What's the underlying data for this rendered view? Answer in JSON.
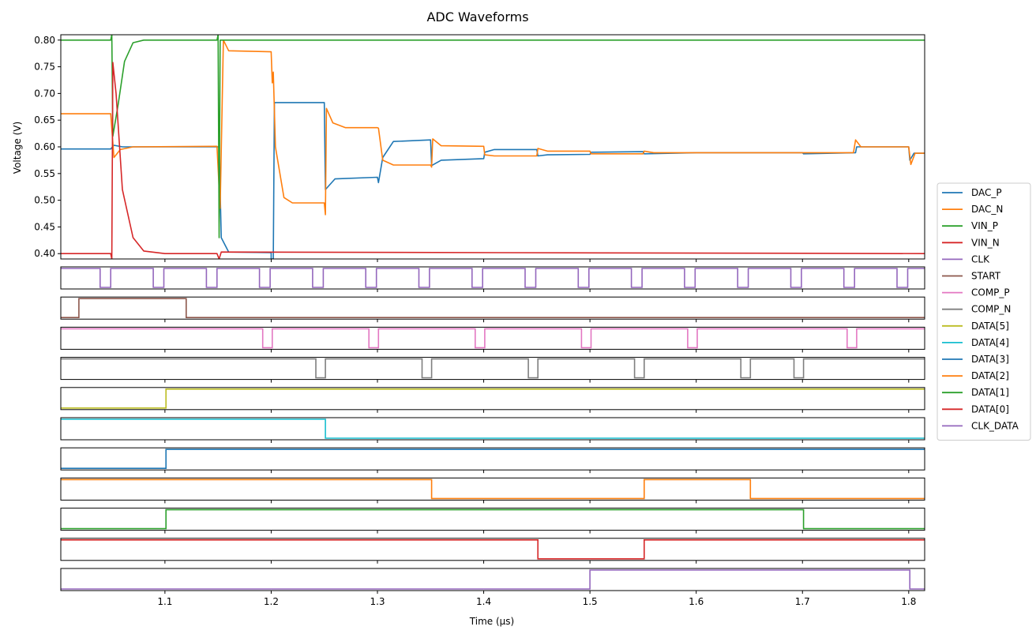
{
  "chart_data": {
    "type": "line",
    "title": "ADC Waveforms",
    "xlabel": "Time (μs)",
    "ylabel": "Voltage (V)",
    "xlim": [
      1.002,
      1.815
    ],
    "ylim": [
      0.39,
      0.81
    ],
    "x_ticks": [
      "1.1",
      "1.2",
      "1.3",
      "1.4",
      "1.5",
      "1.6",
      "1.7",
      "1.8"
    ],
    "y_ticks": [
      "0.40",
      "0.45",
      "0.50",
      "0.55",
      "0.60",
      "0.65",
      "0.70",
      "0.75",
      "0.80"
    ],
    "legend_position": "right",
    "series": [
      {
        "name": "DAC_P",
        "color": "#1f77b4",
        "points": [
          [
            1.002,
            0.596
          ],
          [
            1.049,
            0.596
          ],
          [
            1.052,
            0.603
          ],
          [
            1.06,
            0.6
          ],
          [
            1.149,
            0.6
          ],
          [
            1.151,
            0.6
          ],
          [
            1.153,
            0.43
          ],
          [
            1.16,
            0.403
          ],
          [
            1.2,
            0.402
          ],
          [
            1.2,
            0.39
          ],
          [
            1.202,
            0.39
          ],
          [
            1.203,
            0.683
          ],
          [
            1.25,
            0.683
          ],
          [
            1.251,
            0.52
          ],
          [
            1.26,
            0.54
          ],
          [
            1.3,
            0.543
          ],
          [
            1.301,
            0.533
          ],
          [
            1.305,
            0.58
          ],
          [
            1.315,
            0.61
          ],
          [
            1.35,
            0.613
          ],
          [
            1.351,
            0.565
          ],
          [
            1.36,
            0.575
          ],
          [
            1.4,
            0.578
          ],
          [
            1.401,
            0.59
          ],
          [
            1.41,
            0.595
          ],
          [
            1.45,
            0.595
          ],
          [
            1.451,
            0.583
          ],
          [
            1.46,
            0.585
          ],
          [
            1.5,
            0.586
          ],
          [
            1.501,
            0.59
          ],
          [
            1.55,
            0.591
          ],
          [
            1.551,
            0.587
          ],
          [
            1.6,
            0.589
          ],
          [
            1.65,
            0.589
          ],
          [
            1.7,
            0.589
          ],
          [
            1.701,
            0.587
          ],
          [
            1.75,
            0.589
          ],
          [
            1.751,
            0.6
          ],
          [
            1.8,
            0.6
          ],
          [
            1.801,
            0.575
          ],
          [
            1.805,
            0.588
          ],
          [
            1.815,
            0.588
          ]
        ]
      },
      {
        "name": "DAC_N",
        "color": "#ff7f0e",
        "points": [
          [
            1.002,
            0.662
          ],
          [
            1.049,
            0.662
          ],
          [
            1.052,
            0.58
          ],
          [
            1.058,
            0.595
          ],
          [
            1.07,
            0.6
          ],
          [
            1.149,
            0.601
          ],
          [
            1.152,
            0.485
          ],
          [
            1.155,
            0.8
          ],
          [
            1.16,
            0.78
          ],
          [
            1.2,
            0.778
          ],
          [
            1.201,
            0.72
          ],
          [
            1.202,
            0.74
          ],
          [
            1.204,
            0.6
          ],
          [
            1.212,
            0.505
          ],
          [
            1.22,
            0.495
          ],
          [
            1.25,
            0.495
          ],
          [
            1.251,
            0.473
          ],
          [
            1.252,
            0.672
          ],
          [
            1.258,
            0.645
          ],
          [
            1.27,
            0.636
          ],
          [
            1.3,
            0.636
          ],
          [
            1.301,
            0.635
          ],
          [
            1.305,
            0.575
          ],
          [
            1.315,
            0.566
          ],
          [
            1.35,
            0.566
          ],
          [
            1.351,
            0.562
          ],
          [
            1.352,
            0.615
          ],
          [
            1.36,
            0.602
          ],
          [
            1.4,
            0.601
          ],
          [
            1.401,
            0.585
          ],
          [
            1.41,
            0.583
          ],
          [
            1.45,
            0.583
          ],
          [
            1.451,
            0.597
          ],
          [
            1.46,
            0.592
          ],
          [
            1.5,
            0.592
          ],
          [
            1.501,
            0.587
          ],
          [
            1.55,
            0.587
          ],
          [
            1.551,
            0.592
          ],
          [
            1.56,
            0.589
          ],
          [
            1.6,
            0.589
          ],
          [
            1.7,
            0.589
          ],
          [
            1.748,
            0.589
          ],
          [
            1.75,
            0.613
          ],
          [
            1.755,
            0.6
          ],
          [
            1.8,
            0.6
          ],
          [
            1.802,
            0.567
          ],
          [
            1.806,
            0.588
          ],
          [
            1.815,
            0.588
          ]
        ]
      },
      {
        "name": "VIN_P",
        "color": "#2ca02c",
        "points": [
          [
            1.002,
            0.8
          ],
          [
            1.049,
            0.8
          ],
          [
            1.05,
            0.81
          ],
          [
            1.051,
            0.62
          ],
          [
            1.056,
            0.68
          ],
          [
            1.062,
            0.76
          ],
          [
            1.07,
            0.795
          ],
          [
            1.08,
            0.8
          ],
          [
            1.149,
            0.8
          ],
          [
            1.15,
            0.81
          ],
          [
            1.151,
            0.43
          ],
          [
            1.152,
            0.8
          ],
          [
            1.815,
            0.8
          ]
        ]
      },
      {
        "name": "VIN_N",
        "color": "#d62728",
        "points": [
          [
            1.002,
            0.4
          ],
          [
            1.049,
            0.4
          ],
          [
            1.05,
            0.39
          ],
          [
            1.051,
            0.758
          ],
          [
            1.054,
            0.7
          ],
          [
            1.06,
            0.52
          ],
          [
            1.07,
            0.43
          ],
          [
            1.08,
            0.405
          ],
          [
            1.1,
            0.4
          ],
          [
            1.149,
            0.4
          ],
          [
            1.151,
            0.39
          ],
          [
            1.153,
            0.403
          ],
          [
            1.815,
            0.4
          ]
        ]
      }
    ],
    "digital_signals": [
      {
        "name": "CLK",
        "color": "#9467bd",
        "initial": 1,
        "transitions": [
          [
            1.039,
            0
          ],
          [
            1.049,
            1
          ],
          [
            1.089,
            0
          ],
          [
            1.099,
            1
          ],
          [
            1.139,
            0
          ],
          [
            1.149,
            1
          ],
          [
            1.189,
            0
          ],
          [
            1.199,
            1
          ],
          [
            1.239,
            0
          ],
          [
            1.249,
            1
          ],
          [
            1.289,
            0
          ],
          [
            1.299,
            1
          ],
          [
            1.339,
            0
          ],
          [
            1.349,
            1
          ],
          [
            1.389,
            0
          ],
          [
            1.399,
            1
          ],
          [
            1.439,
            0
          ],
          [
            1.449,
            1
          ],
          [
            1.489,
            0
          ],
          [
            1.499,
            1
          ],
          [
            1.539,
            0
          ],
          [
            1.549,
            1
          ],
          [
            1.589,
            0
          ],
          [
            1.599,
            1
          ],
          [
            1.639,
            0
          ],
          [
            1.649,
            1
          ],
          [
            1.689,
            0
          ],
          [
            1.699,
            1
          ],
          [
            1.739,
            0
          ],
          [
            1.749,
            1
          ],
          [
            1.789,
            0
          ],
          [
            1.799,
            1
          ]
        ]
      },
      {
        "name": "START",
        "color": "#8c564b",
        "initial": 0,
        "transitions": [
          [
            1.019,
            1
          ],
          [
            1.12,
            0
          ]
        ]
      },
      {
        "name": "COMP_P",
        "color": "#e377c2",
        "initial": 1,
        "transitions": [
          [
            1.192,
            0
          ],
          [
            1.201,
            1
          ],
          [
            1.292,
            0
          ],
          [
            1.301,
            1
          ],
          [
            1.392,
            0
          ],
          [
            1.401,
            1
          ],
          [
            1.492,
            0
          ],
          [
            1.501,
            1
          ],
          [
            1.592,
            0
          ],
          [
            1.601,
            1
          ],
          [
            1.742,
            0
          ],
          [
            1.751,
            1
          ]
        ]
      },
      {
        "name": "COMP_N",
        "color": "#7f7f7f",
        "initial": 1,
        "transitions": [
          [
            1.242,
            0
          ],
          [
            1.251,
            1
          ],
          [
            1.342,
            0
          ],
          [
            1.351,
            1
          ],
          [
            1.442,
            0
          ],
          [
            1.451,
            1
          ],
          [
            1.542,
            0
          ],
          [
            1.551,
            1
          ],
          [
            1.642,
            0
          ],
          [
            1.651,
            1
          ],
          [
            1.692,
            0
          ],
          [
            1.701,
            1
          ]
        ]
      },
      {
        "name": "DATA[5]",
        "color": "#bcbd22",
        "initial": 0,
        "transitions": [
          [
            1.101,
            1
          ]
        ]
      },
      {
        "name": "DATA[4]",
        "color": "#17becf",
        "initial": 1,
        "transitions": [
          [
            1.251,
            0
          ]
        ]
      },
      {
        "name": "DATA[3]",
        "color": "#1f77b4",
        "initial": 0,
        "transitions": [
          [
            1.101,
            1
          ]
        ]
      },
      {
        "name": "DATA[2]",
        "color": "#ff7f0e",
        "initial": 1,
        "transitions": [
          [
            1.351,
            0
          ],
          [
            1.551,
            1
          ],
          [
            1.651,
            0
          ]
        ]
      },
      {
        "name": "DATA[1]",
        "color": "#2ca02c",
        "initial": 0,
        "transitions": [
          [
            1.101,
            1
          ],
          [
            1.701,
            0
          ]
        ]
      },
      {
        "name": "DATA[0]",
        "color": "#d62728",
        "initial": 1,
        "transitions": [
          [
            1.451,
            0
          ],
          [
            1.551,
            1
          ]
        ]
      },
      {
        "name": "CLK_DATA",
        "color": "#9467bd",
        "initial": 0,
        "transitions": [
          [
            1.5,
            1
          ],
          [
            1.801,
            0
          ]
        ]
      }
    ]
  }
}
